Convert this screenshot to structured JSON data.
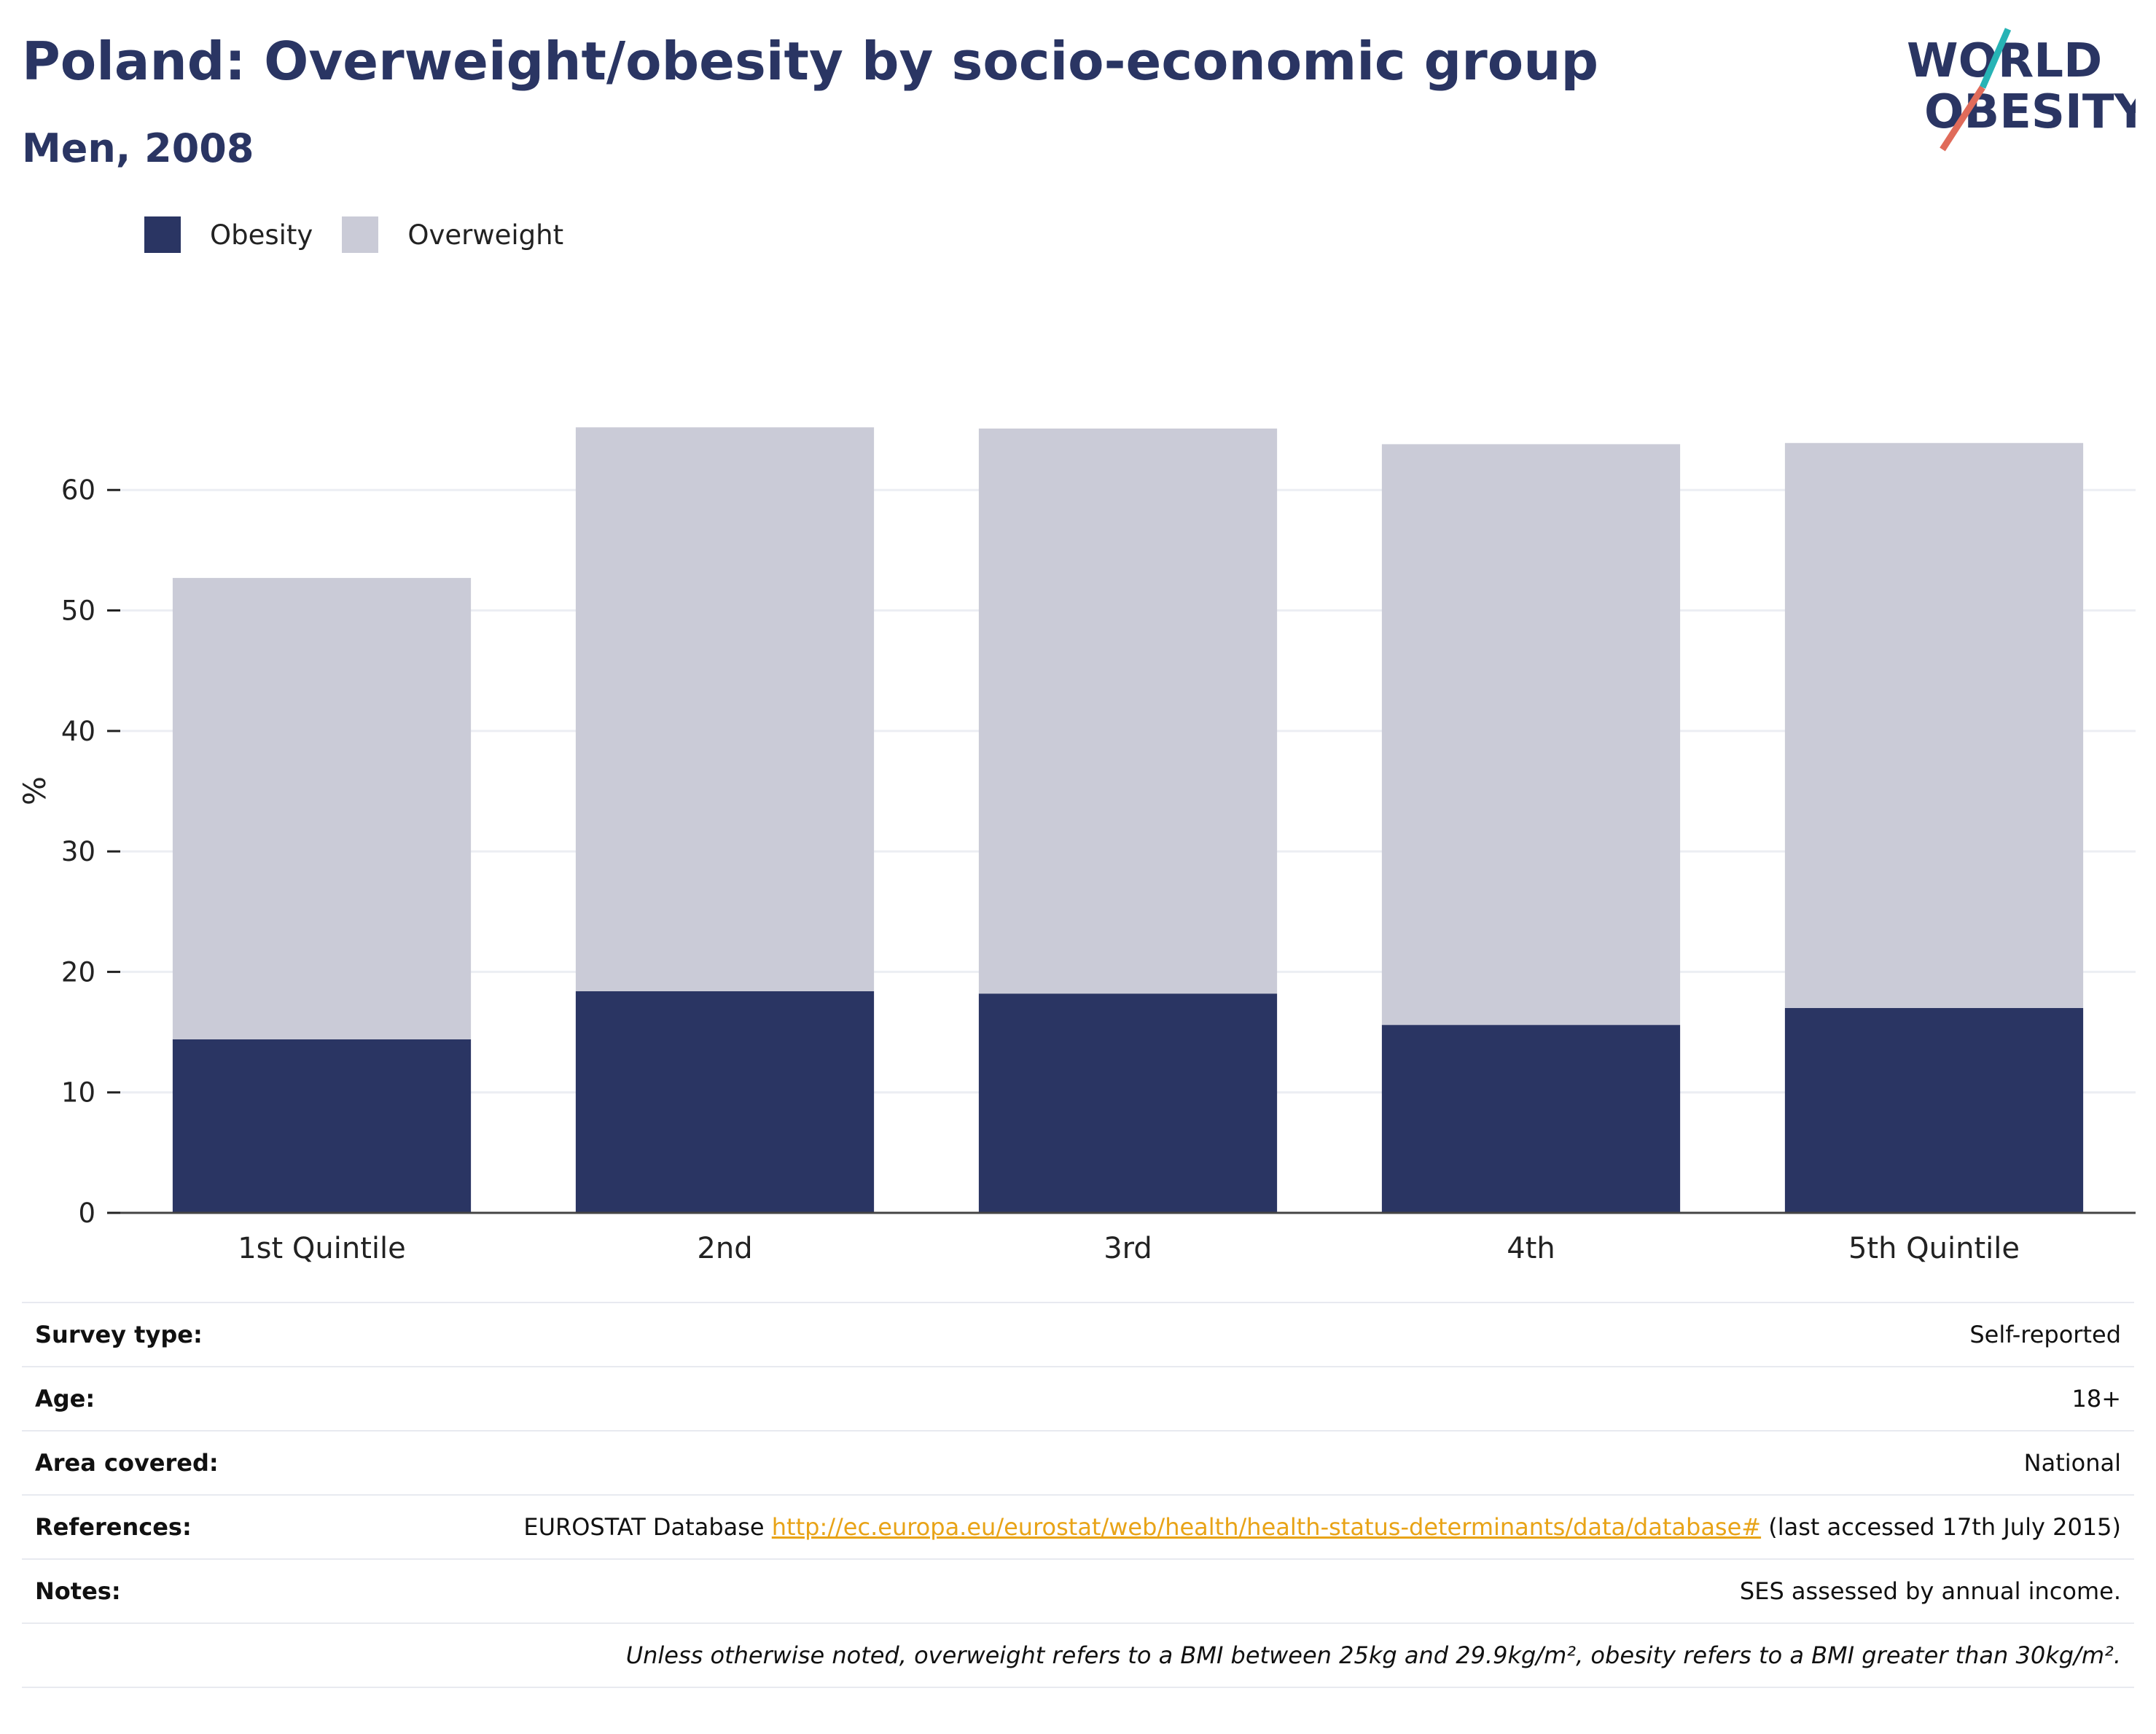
{
  "header": {
    "title": "Poland: Overweight/obesity by socio-economic group",
    "subtitle": "Men, 2008"
  },
  "logo": {
    "line1": "WORLD",
    "line2": "OBESITY",
    "colors": {
      "text": "#2a3563",
      "slash_top": "#27b3b5",
      "slash_bottom": "#e06b5a"
    }
  },
  "legend": [
    {
      "label": "Obesity",
      "color": "#2a3563"
    },
    {
      "label": "Overweight",
      "color": "#cacbd7"
    }
  ],
  "chart_data": {
    "type": "bar",
    "stacked": true,
    "categories": [
      "1st Quintile",
      "2nd",
      "3rd",
      "4th",
      "5th Quintile"
    ],
    "series": [
      {
        "name": "Obesity",
        "color": "#2a3563",
        "values": [
          14.4,
          18.4,
          18.2,
          15.6,
          17.0
        ]
      },
      {
        "name": "Overweight",
        "color": "#cacbd7",
        "values": [
          38.3,
          46.8,
          46.9,
          48.2,
          46.9
        ]
      }
    ],
    "ylabel": "%",
    "ylim": [
      0,
      68
    ],
    "yticks": [
      0,
      10,
      20,
      30,
      40,
      50,
      60
    ],
    "grid": true,
    "legend_position": "top-left"
  },
  "info": {
    "survey_type": {
      "label": "Survey type:",
      "value": "Self-reported"
    },
    "age": {
      "label": "Age:",
      "value": "18+"
    },
    "area": {
      "label": "Area covered:",
      "value": "National"
    },
    "references": {
      "label": "References:",
      "prefix": "EUROSTAT Database ",
      "link": "http://ec.europa.eu/eurostat/web/health/health-status-determinants/data/database#",
      "suffix": " (last accessed 17th July 2015)"
    },
    "notes": {
      "label": "Notes:",
      "value": "SES assessed by annual income."
    },
    "footnote": "Unless otherwise noted, overweight refers to a BMI between 25kg and 29.9kg/m², obesity refers to a BMI greater than 30kg/m²."
  }
}
